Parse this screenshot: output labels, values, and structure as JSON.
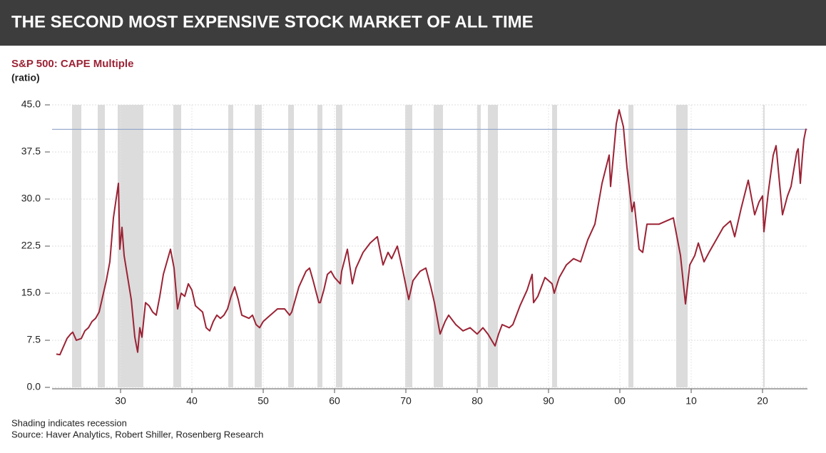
{
  "chart_data": {
    "type": "line",
    "title": "THE SECOND MOST EXPENSIVE STOCK MARKET OF ALL TIME",
    "subtitle": "S&P 500: CAPE Multiple",
    "y_label": "(ratio)",
    "notes": [
      "Shading indicates recession",
      "Source: Haver Analytics, Robert Shiller, Rosenberg Research"
    ],
    "color": "#9b2335",
    "grid": true,
    "xlim": [
      1920.4,
      2026.3
    ],
    "ylim": [
      0,
      45
    ],
    "xticks": [
      {
        "value": 1930,
        "label": "30"
      },
      {
        "value": 1940,
        "label": "40"
      },
      {
        "value": 1950,
        "label": "50"
      },
      {
        "value": 1960,
        "label": "60"
      },
      {
        "value": 1970,
        "label": "70"
      },
      {
        "value": 1980,
        "label": "80"
      },
      {
        "value": 1990,
        "label": "90"
      },
      {
        "value": 2000,
        "label": "00"
      },
      {
        "value": 2010,
        "label": "10"
      },
      {
        "value": 2020,
        "label": "20"
      }
    ],
    "yticks": [
      {
        "value": 0,
        "label": "0.0"
      },
      {
        "value": 7.5,
        "label": "7.5"
      },
      {
        "value": 15,
        "label": "15.0"
      },
      {
        "value": 22.5,
        "label": "22.5"
      },
      {
        "value": 30,
        "label": "30.0"
      },
      {
        "value": 37.5,
        "label": "37.5"
      },
      {
        "value": 45,
        "label": "45.0"
      }
    ],
    "reference_line": 41.1,
    "reference_color": "#8fa3c8",
    "recession_color": "#dcdcdc",
    "recessions": [
      [
        1923.2,
        1924.5
      ],
      [
        1926.8,
        1927.8
      ],
      [
        1929.6,
        1933.2
      ],
      [
        1937.4,
        1938.5
      ],
      [
        1945.1,
        1945.8
      ],
      [
        1948.8,
        1949.8
      ],
      [
        1953.5,
        1954.3
      ],
      [
        1957.6,
        1958.3
      ],
      [
        1960.2,
        1961.1
      ],
      [
        1969.9,
        1970.9
      ],
      [
        1973.9,
        1975.2
      ],
      [
        1980.0,
        1980.5
      ],
      [
        1981.5,
        1982.9
      ],
      [
        1990.5,
        1991.2
      ],
      [
        2001.2,
        2001.9
      ],
      [
        2007.9,
        2009.5
      ],
      [
        2020.1,
        2020.3
      ]
    ],
    "x": [
      1921.0,
      1921.5,
      1922.0,
      1922.5,
      1923.0,
      1923.3,
      1923.8,
      1924.5,
      1925.0,
      1925.5,
      1926.0,
      1926.5,
      1927.0,
      1927.5,
      1928.0,
      1928.5,
      1929.0,
      1929.7,
      1929.9,
      1930.2,
      1930.5,
      1931.0,
      1931.5,
      1932.0,
      1932.4,
      1932.7,
      1933.0,
      1933.5,
      1934.0,
      1934.5,
      1935.0,
      1935.5,
      1936.0,
      1936.5,
      1937.0,
      1937.5,
      1938.0,
      1938.5,
      1939.0,
      1939.5,
      1940.0,
      1940.5,
      1941.0,
      1941.5,
      1942.0,
      1942.5,
      1943.0,
      1943.5,
      1944.0,
      1944.5,
      1945.0,
      1945.5,
      1946.0,
      1946.5,
      1947.0,
      1948.0,
      1948.5,
      1949.0,
      1949.5,
      1950.0,
      1951.0,
      1952.0,
      1953.0,
      1953.7,
      1954.0,
      1955.0,
      1956.0,
      1956.5,
      1957.0,
      1957.8,
      1958.0,
      1958.5,
      1959.0,
      1959.5,
      1960.0,
      1960.8,
      1961.0,
      1961.8,
      1962.5,
      1963.0,
      1964.0,
      1965.0,
      1966.0,
      1966.8,
      1967.5,
      1968.0,
      1968.8,
      1969.5,
      1970.4,
      1971.0,
      1972.0,
      1972.8,
      1973.5,
      1974.0,
      1974.8,
      1975.5,
      1976.0,
      1977.0,
      1978.0,
      1979.0,
      1980.0,
      1980.8,
      1981.5,
      1982.5,
      1983.0,
      1983.5,
      1984.5,
      1985.0,
      1986.0,
      1987.0,
      1987.7,
      1987.9,
      1988.5,
      1989.5,
      1990.5,
      1990.8,
      1991.5,
      1992.5,
      1993.5,
      1994.5,
      1995.5,
      1996.5,
      1997.5,
      1998.5,
      1998.7,
      1999.5,
      1999.9,
      2000.5,
      2001.0,
      2001.7,
      2002.0,
      2002.7,
      2003.2,
      2003.8,
      2004.5,
      2005.5,
      2006.5,
      2007.5,
      2008.0,
      2008.5,
      2009.2,
      2009.8,
      2010.5,
      2011.0,
      2011.8,
      2012.5,
      2013.5,
      2014.5,
      2015.5,
      2016.1,
      2017.0,
      2018.0,
      2018.9,
      2019.5,
      2020.0,
      2020.2,
      2020.8,
      2021.5,
      2021.9,
      2022.8,
      2023.5,
      2024.0,
      2024.8,
      2025.0,
      2025.3,
      2025.6,
      2025.8,
      2026.1
    ],
    "values": [
      5.3,
      5.2,
      6.5,
      7.8,
      8.5,
      8.8,
      7.5,
      7.8,
      9.0,
      9.5,
      10.5,
      11.0,
      12.0,
      14.5,
      17.0,
      20.0,
      27.0,
      32.5,
      22.0,
      25.5,
      21.0,
      17.5,
      14.0,
      8.0,
      5.6,
      9.5,
      8.0,
      13.5,
      13.0,
      12.0,
      11.5,
      14.5,
      18.0,
      20.0,
      22.0,
      19.0,
      12.5,
      15.0,
      14.5,
      16.5,
      15.5,
      13.0,
      12.5,
      12.0,
      9.5,
      9.0,
      10.5,
      11.5,
      11.0,
      11.5,
      12.5,
      14.5,
      16.0,
      14.0,
      11.5,
      11.0,
      11.5,
      10.0,
      9.5,
      10.5,
      11.5,
      12.5,
      12.5,
      11.5,
      12.0,
      16.0,
      18.5,
      19.0,
      17.0,
      13.5,
      13.5,
      15.5,
      18.0,
      18.5,
      17.5,
      16.5,
      18.5,
      22.0,
      16.5,
      19.0,
      21.5,
      23.0,
      24.0,
      19.5,
      21.5,
      20.5,
      22.5,
      19.0,
      14.0,
      17.0,
      18.5,
      19.0,
      16.0,
      13.5,
      8.5,
      10.5,
      11.5,
      10.0,
      9.0,
      9.5,
      8.5,
      9.5,
      8.5,
      6.6,
      8.5,
      10.0,
      9.5,
      10.0,
      13.0,
      15.5,
      18.0,
      13.5,
      14.5,
      17.5,
      16.5,
      15.0,
      17.5,
      19.5,
      20.5,
      20.0,
      23.5,
      26.0,
      32.5,
      37.0,
      32.0,
      42.0,
      44.2,
      41.5,
      35.0,
      28.0,
      29.5,
      22.0,
      21.5,
      26.0,
      26.0,
      26.0,
      26.5,
      27.0,
      24.0,
      21.0,
      13.3,
      19.5,
      21.0,
      23.0,
      20.0,
      21.5,
      23.5,
      25.5,
      26.5,
      24.0,
      28.5,
      33.0,
      27.5,
      29.5,
      30.5,
      24.8,
      31.0,
      37.0,
      38.5,
      27.5,
      30.5,
      32.0,
      37.5,
      38.0,
      32.5,
      37.0,
      39.5,
      41.2
    ]
  }
}
